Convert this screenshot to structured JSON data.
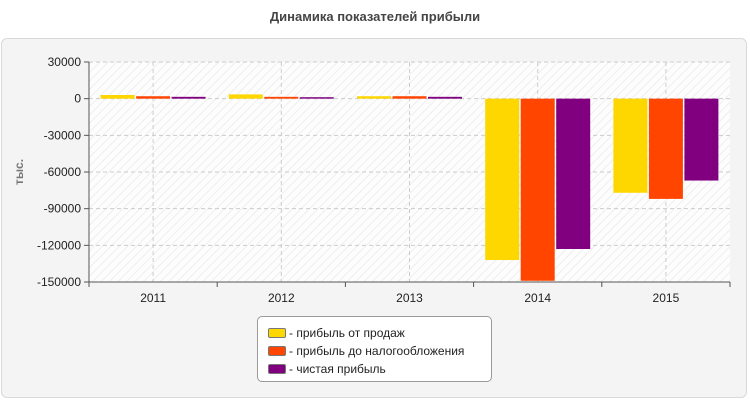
{
  "chart_data": {
    "type": "bar",
    "title": "Динамика показателей прибыли",
    "ylabel": "тыс.",
    "ylim": [
      -150000,
      30000
    ],
    "yticks": [
      30000,
      0,
      -30000,
      -60000,
      -90000,
      -120000,
      -150000
    ],
    "categories": [
      "2011",
      "2012",
      "2013",
      "2014",
      "2015"
    ],
    "series": [
      {
        "name": "- прибыль от продаж",
        "color": "#FFD700",
        "values": [
          3000,
          3500,
          2000,
          -132000,
          -77000
        ]
      },
      {
        "name": "- прибыль до налогообложения",
        "color": "#FF4500",
        "values": [
          2000,
          1500,
          2000,
          -149000,
          -82000
        ]
      },
      {
        "name": "- чистая прибыль",
        "color": "#800080",
        "values": [
          1500,
          1200,
          1500,
          -123000,
          -67000
        ]
      }
    ],
    "grid": true,
    "legend_position": "bottom"
  }
}
